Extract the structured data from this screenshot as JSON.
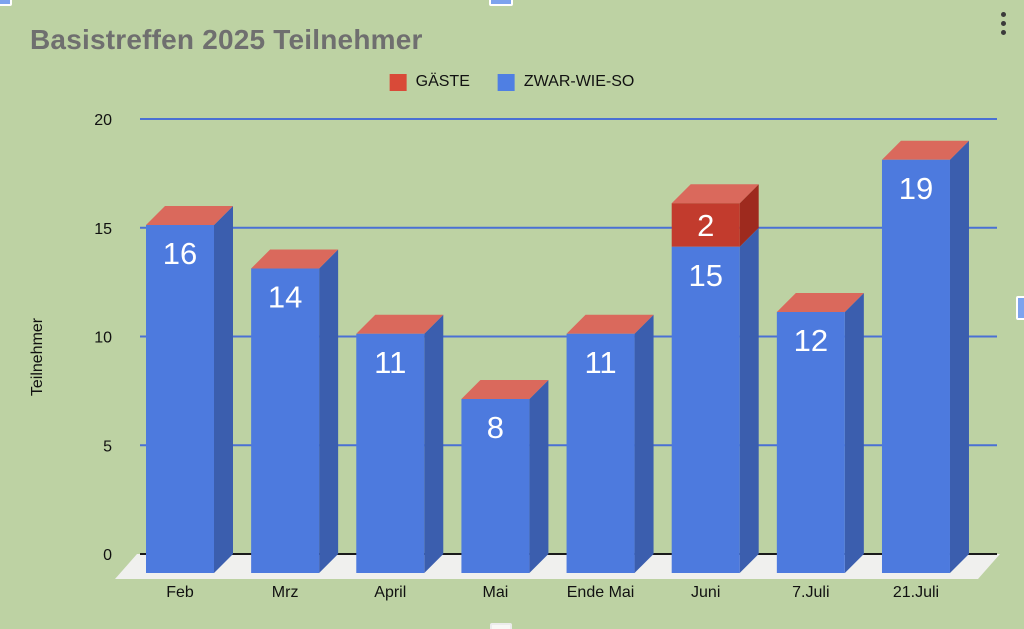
{
  "app": {
    "menu_icon": "kebab-vertical",
    "selection_handles": [
      "top-left",
      "top-center",
      "right-center",
      "bottom-center"
    ]
  },
  "colors": {
    "background": "#bdd2a3",
    "title_text": "#6f6f6f",
    "gridline": "#4a70d4",
    "zero_line": "#1a1a1a",
    "floor": "#f0f0ee",
    "bar_label_text": "#ffffff",
    "axis_text": "#111111"
  },
  "chart_data": {
    "type": "bar",
    "variant": "3d-stacked-column",
    "title": "Basistreffen 2025 Teilnehmer",
    "xlabel": "",
    "ylabel": "Teilnehmer",
    "categories": [
      "Feb",
      "Mrz",
      "April",
      "Mai",
      "Ende Mai",
      "Juni",
      "7.Juli",
      "21.Juli"
    ],
    "series": [
      {
        "name": "GÄSTE",
        "values": [
          0,
          0,
          0,
          0,
          0,
          2,
          0,
          0
        ],
        "swatch": "#d94a38",
        "front": "#c23b2d",
        "side": "#9e2a1e",
        "top": "#da695c"
      },
      {
        "name": "ZWAR-WIE-SO",
        "values": [
          16,
          14,
          11,
          8,
          11,
          15,
          12,
          19
        ],
        "swatch": "#4f7fe3",
        "front": "#4d7ade",
        "side": "#3b5eae",
        "top": "#7396e4"
      }
    ],
    "yticks": [
      0,
      5,
      10,
      15,
      20
    ],
    "ylim": [
      0,
      20
    ],
    "grid": true,
    "legend_position": "top"
  }
}
